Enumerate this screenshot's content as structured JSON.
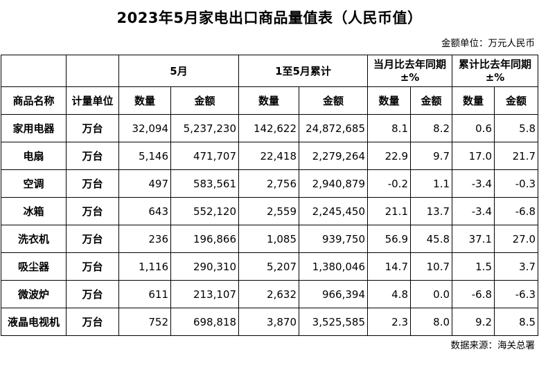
{
  "title": "2023年5月家电出口商品量值表（人民币值）",
  "unit_note": "金额单位：万元人民币",
  "source_note": "数据来源：海关总署",
  "header": {
    "group_may": "5月",
    "group_jan_may": "1至5月累计",
    "group_month_yoy_line1": "当月比去年同期",
    "group_month_yoy_line2": "±%",
    "group_cum_yoy_line1": "累计比去年同期",
    "group_cum_yoy_line2": "±%",
    "col_name": "商品名称",
    "col_unit": "计量单位",
    "col_qty": "数量",
    "col_amt": "金额"
  },
  "rows": [
    {
      "name": "家用电器",
      "unit": "万台",
      "may_qty": "32,094",
      "may_amt": "5,237,230",
      "cum_qty": "142,622",
      "cum_amt": "24,872,685",
      "m_qty": "8.1",
      "m_amt": "8.2",
      "c_qty": "0.6",
      "c_amt": "5.8"
    },
    {
      "name": "电扇",
      "unit": "万台",
      "may_qty": "5,146",
      "may_amt": "471,707",
      "cum_qty": "22,418",
      "cum_amt": "2,279,264",
      "m_qty": "22.9",
      "m_amt": "9.7",
      "c_qty": "17.0",
      "c_amt": "21.7"
    },
    {
      "name": "空调",
      "unit": "万台",
      "may_qty": "497",
      "may_amt": "583,561",
      "cum_qty": "2,756",
      "cum_amt": "2,940,879",
      "m_qty": "-0.2",
      "m_amt": "1.1",
      "c_qty": "-3.4",
      "c_amt": "-0.3"
    },
    {
      "name": "冰箱",
      "unit": "万台",
      "may_qty": "643",
      "may_amt": "552,120",
      "cum_qty": "2,559",
      "cum_amt": "2,245,450",
      "m_qty": "21.1",
      "m_amt": "13.7",
      "c_qty": "-3.4",
      "c_amt": "-6.8"
    },
    {
      "name": "洗衣机",
      "unit": "万台",
      "may_qty": "236",
      "may_amt": "196,866",
      "cum_qty": "1,085",
      "cum_amt": "939,750",
      "m_qty": "56.9",
      "m_amt": "45.8",
      "c_qty": "37.1",
      "c_amt": "27.0"
    },
    {
      "name": "吸尘器",
      "unit": "万台",
      "may_qty": "1,116",
      "may_amt": "290,310",
      "cum_qty": "5,207",
      "cum_amt": "1,380,046",
      "m_qty": "14.7",
      "m_amt": "10.7",
      "c_qty": "1.5",
      "c_amt": "3.7"
    },
    {
      "name": "微波炉",
      "unit": "万台",
      "may_qty": "611",
      "may_amt": "213,107",
      "cum_qty": "2,632",
      "cum_amt": "966,394",
      "m_qty": "4.8",
      "m_amt": "0.0",
      "c_qty": "-6.8",
      "c_amt": "-6.3"
    },
    {
      "name": "液晶电视机",
      "unit": "万台",
      "may_qty": "752",
      "may_amt": "698,818",
      "cum_qty": "3,870",
      "cum_amt": "3,525,585",
      "m_qty": "2.3",
      "m_amt": "8.0",
      "c_qty": "9.2",
      "c_amt": "8.5"
    }
  ]
}
